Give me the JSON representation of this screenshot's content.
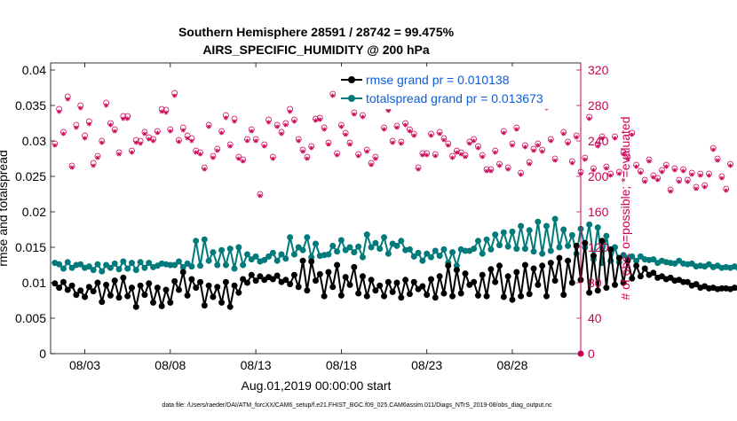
{
  "chart_data": {
    "type": "line",
    "title_line1": "Southern Hemisphere 28591 / 28742 = 99.475%",
    "title_line2": "AIRS_SPECIFIC_HUMIDITY @ 200 hPa",
    "xlabel": "Aug.01,2019 00:00:00 start",
    "ylabel_left": "rmse and totalspread",
    "ylabel_right": "# of obs: o=possible; *=evaluated",
    "footer": "data file: /Users/raeder/DAI/ATM_forcXX/CAM6_setup/f.e21.FHIST_BGC.f09_025.CAM6assim.011/Diags_NTrS_2019-08/obs_diag_output.nc",
    "xlim": [
      1,
      32
    ],
    "ylim_left": [
      0,
      0.041
    ],
    "ylim_right": [
      0,
      328
    ],
    "x_ticks": [
      3,
      8,
      13,
      18,
      23,
      28
    ],
    "x_tick_labels": [
      "08/03",
      "08/08",
      "08/13",
      "08/18",
      "08/23",
      "08/28"
    ],
    "y_left_ticks": [
      "0",
      "0.005",
      "0.01",
      "0.015",
      "0.02",
      "0.025",
      "0.03",
      "0.035",
      "0.04"
    ],
    "y_left_tick_values": [
      0,
      0.005,
      0.01,
      0.015,
      0.02,
      0.025,
      0.03,
      0.035,
      0.04
    ],
    "y_right_ticks": [
      "0",
      "40",
      "80",
      "120",
      "160",
      "200",
      "240",
      "280",
      "320"
    ],
    "y_right_tick_values": [
      0,
      40,
      80,
      120,
      160,
      200,
      240,
      280,
      320
    ],
    "x_step_days": 0.25,
    "x_start": 1.25,
    "series": [
      {
        "name": "rmse grand pr = 0.010138",
        "color": "#000000",
        "values": [
          0.0099,
          0.0093,
          0.0101,
          0.009,
          0.0096,
          0.0083,
          0.0089,
          0.008,
          0.0094,
          0.0088,
          0.01,
          0.0073,
          0.0097,
          0.0082,
          0.0103,
          0.0079,
          0.0107,
          0.0081,
          0.0093,
          0.0066,
          0.0096,
          0.0083,
          0.0099,
          0.0072,
          0.0093,
          0.0067,
          0.009,
          0.0072,
          0.0102,
          0.009,
          0.0115,
          0.0082,
          0.0105,
          0.0093,
          0.0101,
          0.0068,
          0.0096,
          0.008,
          0.0094,
          0.0072,
          0.0101,
          0.0066,
          0.0096,
          0.0086,
          0.0105,
          0.01,
          0.0111,
          0.0103,
          0.0109,
          0.0104,
          0.0108,
          0.0105,
          0.011,
          0.0101,
          0.0104,
          0.0098,
          0.0111,
          0.0094,
          0.0131,
          0.0089,
          0.013,
          0.0103,
          0.0112,
          0.0081,
          0.0115,
          0.0094,
          0.0125,
          0.0082,
          0.0108,
          0.0097,
          0.0122,
          0.0085,
          0.0109,
          0.0081,
          0.0104,
          0.0089,
          0.0096,
          0.0081,
          0.0101,
          0.0087,
          0.01,
          0.0079,
          0.0104,
          0.0084,
          0.0101,
          0.0091,
          0.0095,
          0.0083,
          0.0105,
          0.0079,
          0.0109,
          0.0085,
          0.0124,
          0.0081,
          0.0118,
          0.0085,
          0.0113,
          0.0097,
          0.0101,
          0.0082,
          0.0111,
          0.0081,
          0.0119,
          0.0101,
          0.0124,
          0.008,
          0.0109,
          0.0076,
          0.0115,
          0.0081,
          0.0125,
          0.0084,
          0.012,
          0.0097,
          0.0124,
          0.0081,
          0.0128,
          0.0103,
          0.0135,
          0.0083,
          0.0131,
          0.01,
          0.0152,
          0.0104,
          0.0156,
          0.0086,
          0.0138,
          0.0089,
          0.0159,
          0.0093,
          0.0147,
          0.0097,
          0.0135,
          0.01,
          0.0131,
          0.0106,
          0.0124,
          0.0109,
          0.012,
          0.0111,
          0.0114,
          0.0107,
          0.0109,
          0.0105,
          0.0107,
          0.0103,
          0.0104,
          0.0101,
          0.0101,
          0.0096,
          0.0098,
          0.0093,
          0.0095,
          0.0092,
          0.0093,
          0.0091,
          0.0092,
          0.0092,
          0.0091,
          0.0093,
          0.0092
        ]
      },
      {
        "name": "totalspread grand pr = 0.013673",
        "color": "#007a7a",
        "values": [
          0.0128,
          0.0126,
          0.012,
          0.0129,
          0.0121,
          0.0125,
          0.0126,
          0.0121,
          0.0123,
          0.0118,
          0.0126,
          0.0116,
          0.0125,
          0.0121,
          0.0127,
          0.0119,
          0.013,
          0.012,
          0.0128,
          0.0118,
          0.0129,
          0.0121,
          0.0128,
          0.0122,
          0.0124,
          0.0127,
          0.0126,
          0.0125,
          0.0125,
          0.013,
          0.0122,
          0.0127,
          0.0123,
          0.0159,
          0.0124,
          0.0161,
          0.0131,
          0.0143,
          0.0125,
          0.0146,
          0.0125,
          0.0148,
          0.012,
          0.015,
          0.0125,
          0.014,
          0.0133,
          0.0137,
          0.013,
          0.0132,
          0.0137,
          0.0142,
          0.0131,
          0.014,
          0.0134,
          0.0164,
          0.014,
          0.015,
          0.0146,
          0.0164,
          0.0136,
          0.0155,
          0.0138,
          0.0139,
          0.014,
          0.0152,
          0.0144,
          0.016,
          0.0146,
          0.015,
          0.0143,
          0.0151,
          0.0136,
          0.0168,
          0.015,
          0.0156,
          0.0148,
          0.0164,
          0.0141,
          0.0155,
          0.0152,
          0.0159,
          0.0146,
          0.0147,
          0.0137,
          0.0142,
          0.0131,
          0.0141,
          0.0136,
          0.0145,
          0.0138,
          0.0147,
          0.0128,
          0.0143,
          0.0124,
          0.0147,
          0.0145,
          0.0145,
          0.0148,
          0.0159,
          0.0141,
          0.0161,
          0.0147,
          0.0168,
          0.0153,
          0.0171,
          0.0151,
          0.0172,
          0.0148,
          0.018,
          0.0148,
          0.0174,
          0.0144,
          0.0186,
          0.0141,
          0.018,
          0.0145,
          0.019,
          0.015,
          0.0175,
          0.0152,
          0.0167,
          0.0141,
          0.0176,
          0.015,
          0.0182,
          0.0133,
          0.0178,
          0.0128,
          0.0166,
          0.0131,
          0.015,
          0.0129,
          0.0139,
          0.0135,
          0.0137,
          0.0131,
          0.0137,
          0.0133,
          0.0132,
          0.0133,
          0.0128,
          0.0131,
          0.0129,
          0.0128,
          0.0127,
          0.0131,
          0.0127,
          0.0126,
          0.0127,
          0.0123,
          0.0124,
          0.0123,
          0.0126,
          0.0122,
          0.0124,
          0.0121,
          0.0122,
          0.0121,
          0.0123,
          0.012
        ]
      }
    ],
    "obs_series": {
      "name": "# of obs",
      "color": "#cc0055",
      "possible": [
        237,
        276,
        250,
        290,
        212,
        258,
        280,
        246,
        262,
        215,
        223,
        240,
        283,
        260,
        253,
        227,
        268,
        268,
        229,
        241,
        240,
        250,
        244,
        242,
        251,
        276,
        275,
        253,
        294,
        241,
        255,
        246,
        243,
        229,
        227,
        210,
        258,
        223,
        231,
        251,
        269,
        236,
        265,
        222,
        219,
        242,
        253,
        242,
        180,
        236,
        264,
        222,
        258,
        250,
        260,
        276,
        264,
        242,
        230,
        222,
        234,
        265,
        266,
        255,
        238,
        293,
        226,
        258,
        249,
        238,
        272,
        225,
        269,
        230,
        215,
        222,
        296,
        255,
        277,
        240,
        257,
        239,
        260,
        253,
        248,
        210,
        226,
        226,
        248,
        225,
        250,
        243,
        237,
        223,
        229,
        227,
        224,
        239,
        242,
        234,
        224,
        208,
        208,
        229,
        214,
        251,
        210,
        237,
        255,
        204,
        235,
        216,
        231,
        237,
        230,
        280,
        242,
        220,
        282,
        250,
        239,
        217,
        246,
        205,
        221,
        267,
        209,
        236,
        245,
        211,
        203,
        245,
        205,
        227,
        222,
        249,
        213,
        206,
        196,
        219,
        201,
        198,
        207,
        213,
        185,
        209,
        196,
        208,
        196,
        204,
        188,
        203,
        190,
        203,
        232,
        220,
        200,
        186,
        214
      ],
      "evaluated": [
        235,
        273,
        248,
        287,
        210,
        255,
        277,
        243,
        259,
        212,
        221,
        238,
        280,
        258,
        251,
        225,
        265,
        265,
        227,
        238,
        237,
        248,
        242,
        240,
        249,
        273,
        272,
        251,
        291,
        239,
        252,
        243,
        240,
        227,
        225,
        208,
        256,
        221,
        229,
        249,
        266,
        234,
        262,
        220,
        217,
        240,
        251,
        240,
        178,
        234,
        261,
        220,
        256,
        248,
        258,
        273,
        262,
        240,
        228,
        220,
        232,
        263,
        264,
        253,
        236,
        291,
        224,
        256,
        247,
        236,
        270,
        223,
        267,
        228,
        213,
        220,
        293,
        253,
        274,
        238,
        255,
        237,
        258,
        251,
        246,
        208,
        224,
        224,
        246,
        223,
        248,
        241,
        235,
        221,
        227,
        225,
        222,
        237,
        240,
        232,
        222,
        206,
        206,
        227,
        212,
        249,
        208,
        235,
        253,
        202,
        233,
        214,
        229,
        235,
        228,
        277,
        240,
        218,
        279,
        248,
        237,
        215,
        244,
        203,
        219,
        265,
        207,
        234,
        243,
        209,
        201,
        243,
        203,
        225,
        220,
        247,
        211,
        204,
        194,
        217,
        199,
        196,
        205,
        211,
        183,
        207,
        194,
        206,
        194,
        202,
        186,
        201,
        188,
        201,
        230,
        218,
        198,
        184,
        212
      ]
    }
  }
}
